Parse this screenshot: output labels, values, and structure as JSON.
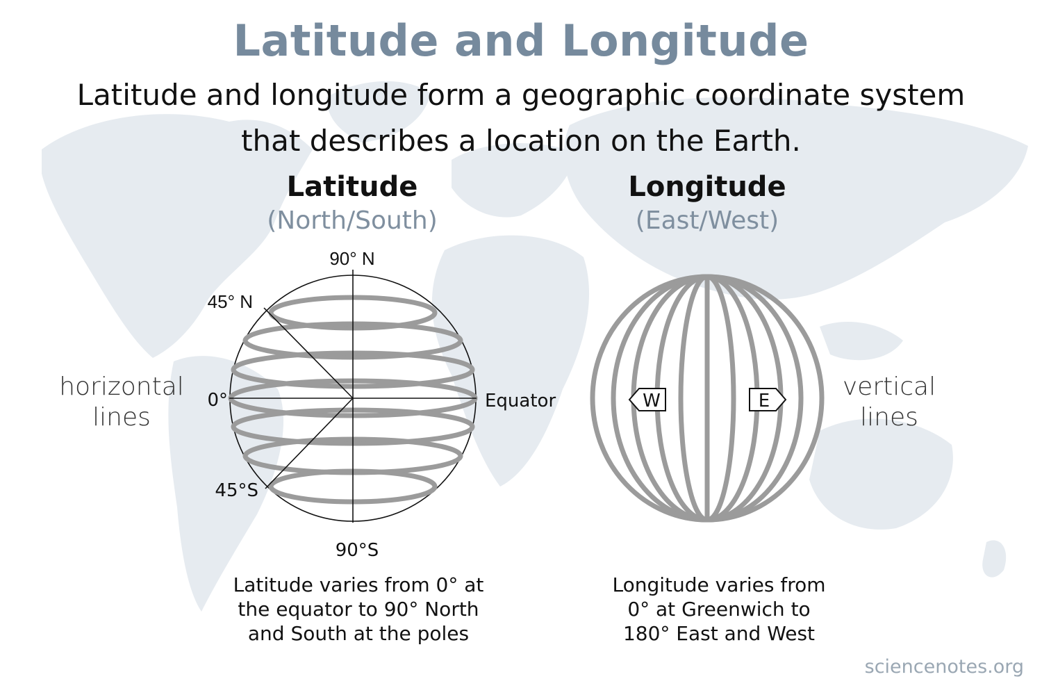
{
  "title": "Latitude and Longitude",
  "subtitle": "Latitude and longitude form a geographic coordinate system that describes a location on the Earth.",
  "latitude": {
    "heading": "Latitude",
    "subheading": "(North/South)",
    "side_label": "horizontal lines",
    "labels": {
      "north_pole": "90° N",
      "north_45": "45° N",
      "zero": "0°",
      "equator": "Equator",
      "south_45": "45°S",
      "south_pole": "90°S"
    },
    "caption": "Latitude varies from 0° at the equator to 90° North and South at the poles"
  },
  "longitude": {
    "heading": "Longitude",
    "subheading": "(East/West)",
    "side_label": "vertical lines",
    "west_marker": "W",
    "east_marker": "E",
    "caption": "Longitude varies from 0° at Greenwich to 180° East and West"
  },
  "credit": "sciencenotes.org",
  "colors": {
    "title": "#768a9d",
    "subheading": "#7f8f9f",
    "grid_lines": "#9b9b9b",
    "map": "#e6ebf0",
    "credit": "#9aa7b3"
  }
}
